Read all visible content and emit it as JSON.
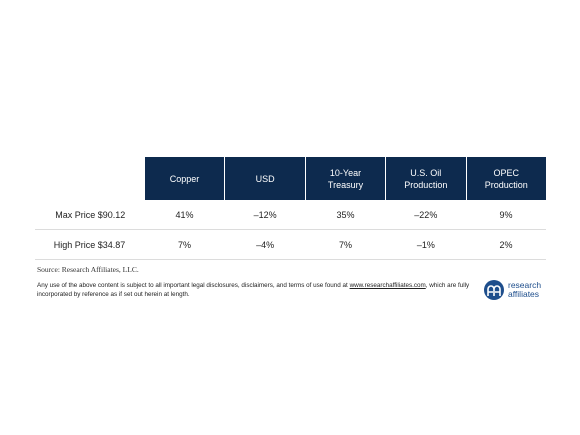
{
  "table": {
    "columns": [
      "Copper",
      "USD",
      "10-Year Treasury",
      "U.S. Oil Production",
      "OPEC Production"
    ],
    "rows": [
      [
        "Max Price $90.12",
        "41%",
        "–12%",
        "35%",
        "–22%",
        "9%"
      ],
      [
        "High Price $34.87",
        "7%",
        "–4%",
        "7%",
        "–1%",
        "2%"
      ]
    ]
  },
  "source": "Source: Research Affiliates, LLC.",
  "disclaimer": {
    "before": "Any use of the above content is subject to all important legal disclosures, disclaimers, and terms of use found at",
    "link": "www.researchaffiliates.com",
    "after": ", which are fully incorporated by reference as if set out herein at length."
  },
  "logo": {
    "line1": "research",
    "line2": "affiliates"
  }
}
